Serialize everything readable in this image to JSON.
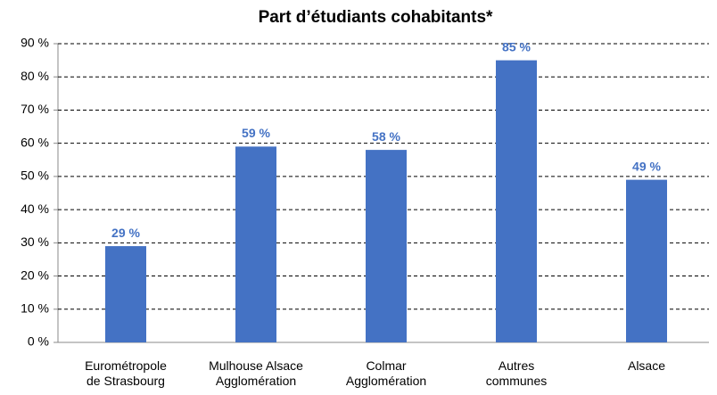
{
  "chart_data": {
    "type": "bar",
    "title": "Part d’étudiants cohabitants*",
    "categories": [
      "Eurométropole\nde Strasbourg",
      "Mulhouse Alsace\nAgglomération",
      "Colmar\nAgglomération",
      "Autres\ncommunes",
      "Alsace"
    ],
    "values": [
      29,
      59,
      58,
      85,
      49
    ],
    "value_labels": [
      "29 %",
      "59 %",
      "58 %",
      "85 %",
      "49 %"
    ],
    "color": "#4472c4",
    "ylim": [
      0,
      90
    ],
    "yticks": [
      {
        "value": 0,
        "label": "0 %"
      },
      {
        "value": 10,
        "label": "10 %"
      },
      {
        "value": 20,
        "label": "20 %"
      },
      {
        "value": 30,
        "label": "30 %"
      },
      {
        "value": 40,
        "label": "40 %"
      },
      {
        "value": 50,
        "label": "50 %"
      },
      {
        "value": 60,
        "label": "60 %"
      },
      {
        "value": 70,
        "label": "70 %"
      },
      {
        "value": 80,
        "label": "80 %"
      },
      {
        "value": 90,
        "label": "90 %"
      }
    ],
    "grid": true
  }
}
